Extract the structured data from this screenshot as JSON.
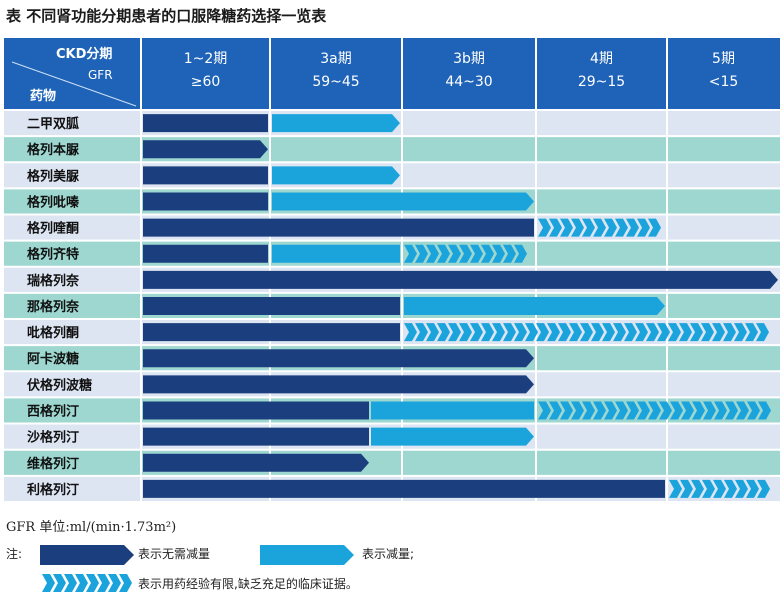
{
  "title": "表  不同肾功能分期患者的口服降糖药选择一览表",
  "header": {
    "corner_top": "CKD分期",
    "corner_mid": "GFR",
    "corner_bottom": "药物",
    "stages": [
      {
        "name": "1~2期",
        "gfr": "≥60"
      },
      {
        "name": "3a期",
        "gfr": "59~45"
      },
      {
        "name": "3b期",
        "gfr": "44~30"
      },
      {
        "name": "4期",
        "gfr": "29~15"
      },
      {
        "name": "5期",
        "gfr": "<15"
      }
    ]
  },
  "drugs": [
    {
      "name": "二甲双胍",
      "segments": [
        {
          "type": "dark",
          "from": 0,
          "to": 1
        },
        {
          "type": "light",
          "from": 1,
          "to": 2
        }
      ]
    },
    {
      "name": "格列本脲",
      "segments": [
        {
          "type": "dark",
          "from": 0,
          "to": 1
        }
      ]
    },
    {
      "name": "格列美脲",
      "segments": [
        {
          "type": "dark",
          "from": 0,
          "to": 1
        },
        {
          "type": "light",
          "from": 1,
          "to": 2
        }
      ]
    },
    {
      "name": "格列吡嗪",
      "segments": [
        {
          "type": "dark",
          "from": 0,
          "to": 1
        },
        {
          "type": "light",
          "from": 1,
          "to": 3
        }
      ]
    },
    {
      "name": "格列喹酮",
      "segments": [
        {
          "type": "dark",
          "from": 0,
          "to": 3
        },
        {
          "type": "chevron",
          "from": 3,
          "to": 4
        }
      ]
    },
    {
      "name": "格列齐特",
      "segments": [
        {
          "type": "dark",
          "from": 0,
          "to": 1
        },
        {
          "type": "light",
          "from": 1,
          "to": 2
        },
        {
          "type": "chevron",
          "from": 2,
          "to": 3
        }
      ]
    },
    {
      "name": "瑞格列奈",
      "segments": [
        {
          "type": "dark",
          "from": 0,
          "to": 5
        }
      ]
    },
    {
      "name": "那格列奈",
      "segments": [
        {
          "type": "dark",
          "from": 0,
          "to": 2
        },
        {
          "type": "light",
          "from": 2,
          "to": 4
        }
      ]
    },
    {
      "name": "吡格列酮",
      "segments": [
        {
          "type": "dark",
          "from": 0,
          "to": 2
        },
        {
          "type": "chevron",
          "from": 2,
          "to": 5
        }
      ]
    },
    {
      "name": "阿卡波糖",
      "segments": [
        {
          "type": "dark",
          "from": 0,
          "to": 3
        }
      ]
    },
    {
      "name": "伏格列波糖",
      "segments": [
        {
          "type": "dark",
          "from": 0,
          "to": 3
        }
      ]
    },
    {
      "name": "西格列汀",
      "segments": [
        {
          "type": "dark",
          "from": 0,
          "to": 1.75
        },
        {
          "type": "light",
          "from": 1.75,
          "to": 3
        },
        {
          "type": "chevron",
          "from": 3,
          "to": 5
        }
      ]
    },
    {
      "name": "沙格列汀",
      "segments": [
        {
          "type": "dark",
          "from": 0,
          "to": 1.75
        },
        {
          "type": "light",
          "from": 1.75,
          "to": 3
        }
      ]
    },
    {
      "name": "维格列汀",
      "segments": [
        {
          "type": "dark",
          "from": 0,
          "to": 1.75
        }
      ]
    },
    {
      "name": "利格列汀",
      "segments": [
        {
          "type": "dark",
          "from": 0,
          "to": 4
        },
        {
          "type": "chevron",
          "from": 4,
          "to": 5
        }
      ]
    }
  ],
  "notes": {
    "unit": "GFR 单位:ml/(min·1.73m²)",
    "label": "注:",
    "dark": "表示无需减量",
    "light": "表示减量;",
    "chevron": "表示用药经验有限,缺乏充足的临床证据。"
  },
  "colors": {
    "header_bg": "#1e63b8",
    "dark": "#1b3f7e",
    "light": "#1ba3dc",
    "chevron": "#1ba3dc",
    "row_even": "#dde5f3",
    "row_odd": "#9dd7d0",
    "divider": "#ffffff"
  }
}
